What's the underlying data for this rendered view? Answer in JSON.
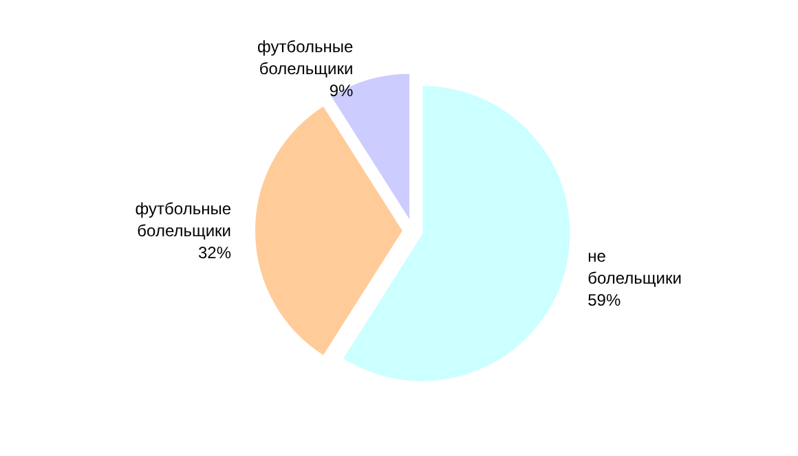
{
  "chart_data": {
    "type": "pie",
    "categories": [
      "не болельщики",
      "футбольные болельщики",
      "футбольные болельщики"
    ],
    "values": [
      59,
      32,
      9
    ],
    "colors": [
      "#ccffff",
      "#ffcc99",
      "#ccccff"
    ],
    "value_labels": [
      "59%",
      "32%",
      "9%"
    ],
    "legend": false
  }
}
